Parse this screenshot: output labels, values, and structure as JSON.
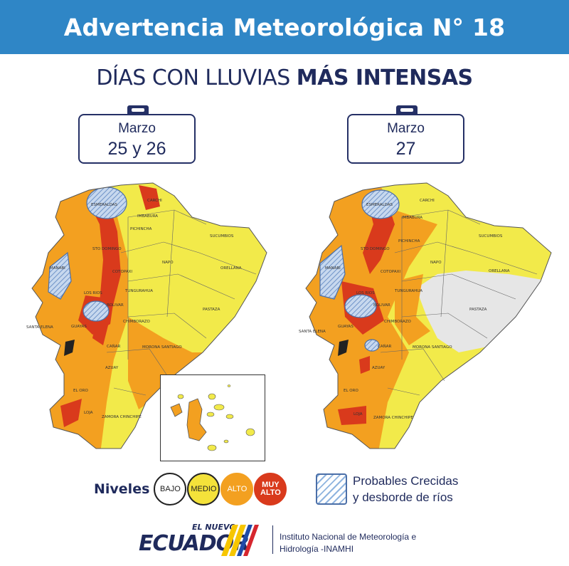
{
  "header": {
    "title": "Advertencia Meteorológica N° 18"
  },
  "subtitle": {
    "normal": "DÍAS CON LLUVIAS ",
    "strong": "MÁS INTENSAS"
  },
  "maps": [
    {
      "date_month": "Marzo",
      "date_days": "25 y 26"
    },
    {
      "date_month": "Marzo",
      "date_days": "27"
    }
  ],
  "provinces": {
    "carchi": "CARCHI",
    "esmeraldas": "ESMERALDAS",
    "imbabura": "IMBABURA",
    "pichincha": "PICHINCHA",
    "sucumbios": "SUCUMBIOS",
    "sto_domingo": "STO DOMINGO",
    "manabi": "MANABI",
    "napo": "NAPO",
    "cotopaxi": "COTOPAXI",
    "orellana": "ORELLANA",
    "los_rios": "LOS RIOS",
    "tungurahua": "TUNGURAHUA",
    "bolivar": "BOLIVAR",
    "pastaza": "PASTAZA",
    "santa_elena": "SANTA ELENA",
    "guayas": "GUAYAS",
    "chimborazo": "CHIMBORAZO",
    "canar": "CAÑAR",
    "morona_santiago": "MORONA SANTIAGO",
    "azuay": "AZUAY",
    "el_oro": "EL ORO",
    "loja": "LOJA",
    "zamora": "ZAMORA CHINCHIPE"
  },
  "legend": {
    "levels_title": "Niveles",
    "levels": [
      {
        "label": "BAJO",
        "color": "#ffffff"
      },
      {
        "label": "MEDIO",
        "color": "#f4e23a"
      },
      {
        "label": "ALTO",
        "color": "#f3a020"
      },
      {
        "label_line1": "MUY",
        "label_line2": "ALTO",
        "color": "#d93a1c"
      }
    ],
    "flood_line1": "Probables Crecidas",
    "flood_line2": "y desborde de ríos"
  },
  "footer": {
    "brand_small": "EL NUEVO",
    "brand_big": "ECUADOR",
    "institute_line1": "Instituto Nacional de Meteorología e",
    "institute_line2": "Hidrología -INAMHI"
  },
  "colors": {
    "banner": "#2f86c6",
    "navy": "#1f2a5c",
    "medio": "#f4e23a",
    "alto": "#f3a020",
    "muy_alto": "#d93a1c",
    "no_data": "#e6e6e6",
    "flood_hatch": "#8fb4df"
  }
}
